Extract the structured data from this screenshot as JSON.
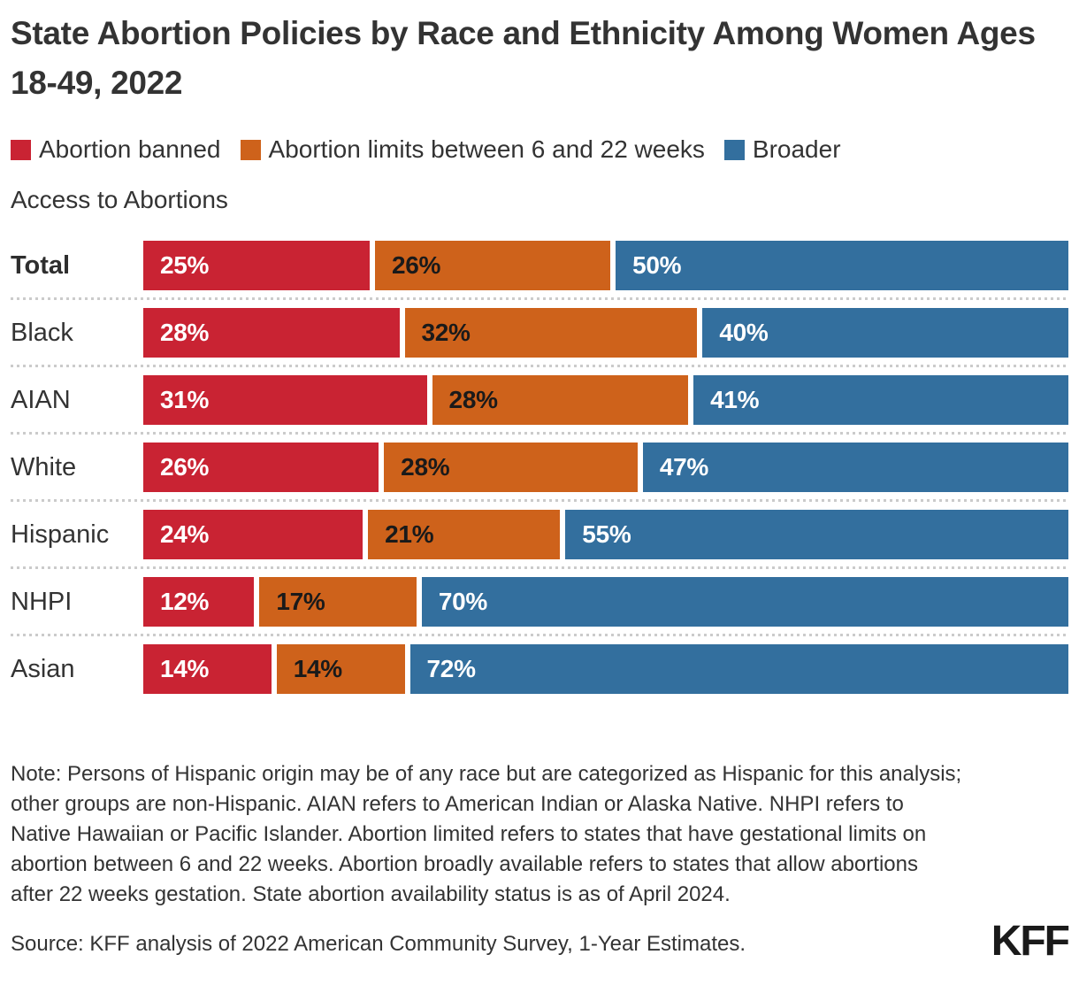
{
  "header": {
    "title": "State Abortion Policies by Race and Ethnicity Among Women Ages 18-49, 2022"
  },
  "legend": {
    "line1": [
      {
        "key": "abortion-banned",
        "label": "Abortion banned",
        "color": "#C92333"
      },
      {
        "key": "abortion-limited",
        "label": "Abortion limits between 6 and 22 weeks",
        "color": "#CE621B"
      },
      {
        "key": "broader-access",
        "label": "Broader",
        "color": "#336F9E"
      }
    ],
    "line2": "Access to Abortions"
  },
  "chart_data": {
    "type": "bar",
    "orientation": "horizontal",
    "stacked": true,
    "unit": "%",
    "title": "State Abortion Policies by Race and Ethnicity Among Women Ages 18-49, 2022",
    "categories": [
      "Total",
      "Black",
      "AIAN",
      "White",
      "Hispanic",
      "NHPI",
      "Asian"
    ],
    "series": [
      {
        "name": "Abortion banned",
        "color": "#C92333",
        "label_color": "#FFFFFF",
        "values": [
          25,
          28,
          31,
          26,
          24,
          12,
          14
        ]
      },
      {
        "name": "Abortion limits between 6 and 22 weeks",
        "color": "#CE621B",
        "label_color": "#1A1A1A",
        "values": [
          26,
          32,
          28,
          28,
          21,
          17,
          14
        ]
      },
      {
        "name": "Broader Access to Abortions",
        "color": "#336F9E",
        "label_color": "#FFFFFF",
        "values": [
          50,
          40,
          41,
          47,
          55,
          70,
          72
        ]
      }
    ],
    "xlim": [
      0,
      100
    ],
    "grid": false,
    "legend_position": "top",
    "value_labels": "inside-start"
  },
  "note": "Note: Persons of Hispanic origin may be of any race but are categorized as Hispanic for this analysis; other groups are non-Hispanic. AIAN refers to American Indian or Alaska Native. NHPI refers to Native Hawaiian or Pacific Islander. Abortion limited refers to states that have gestational limits on abortion between 6 and 22 weeks. Abortion broadly available refers to states that allow abortions after 22 weeks gestation. State abortion availability status is as of April 2024.",
  "source": "Source: KFF analysis of 2022 American Community Survey, 1-Year Estimates.",
  "logo": "KFF",
  "colors": {
    "text": "#333333",
    "separator": "#CBCBCB",
    "background": "#FFFFFF",
    "banned": "#C92333",
    "limited": "#CE621B",
    "broader": "#336F9E"
  }
}
